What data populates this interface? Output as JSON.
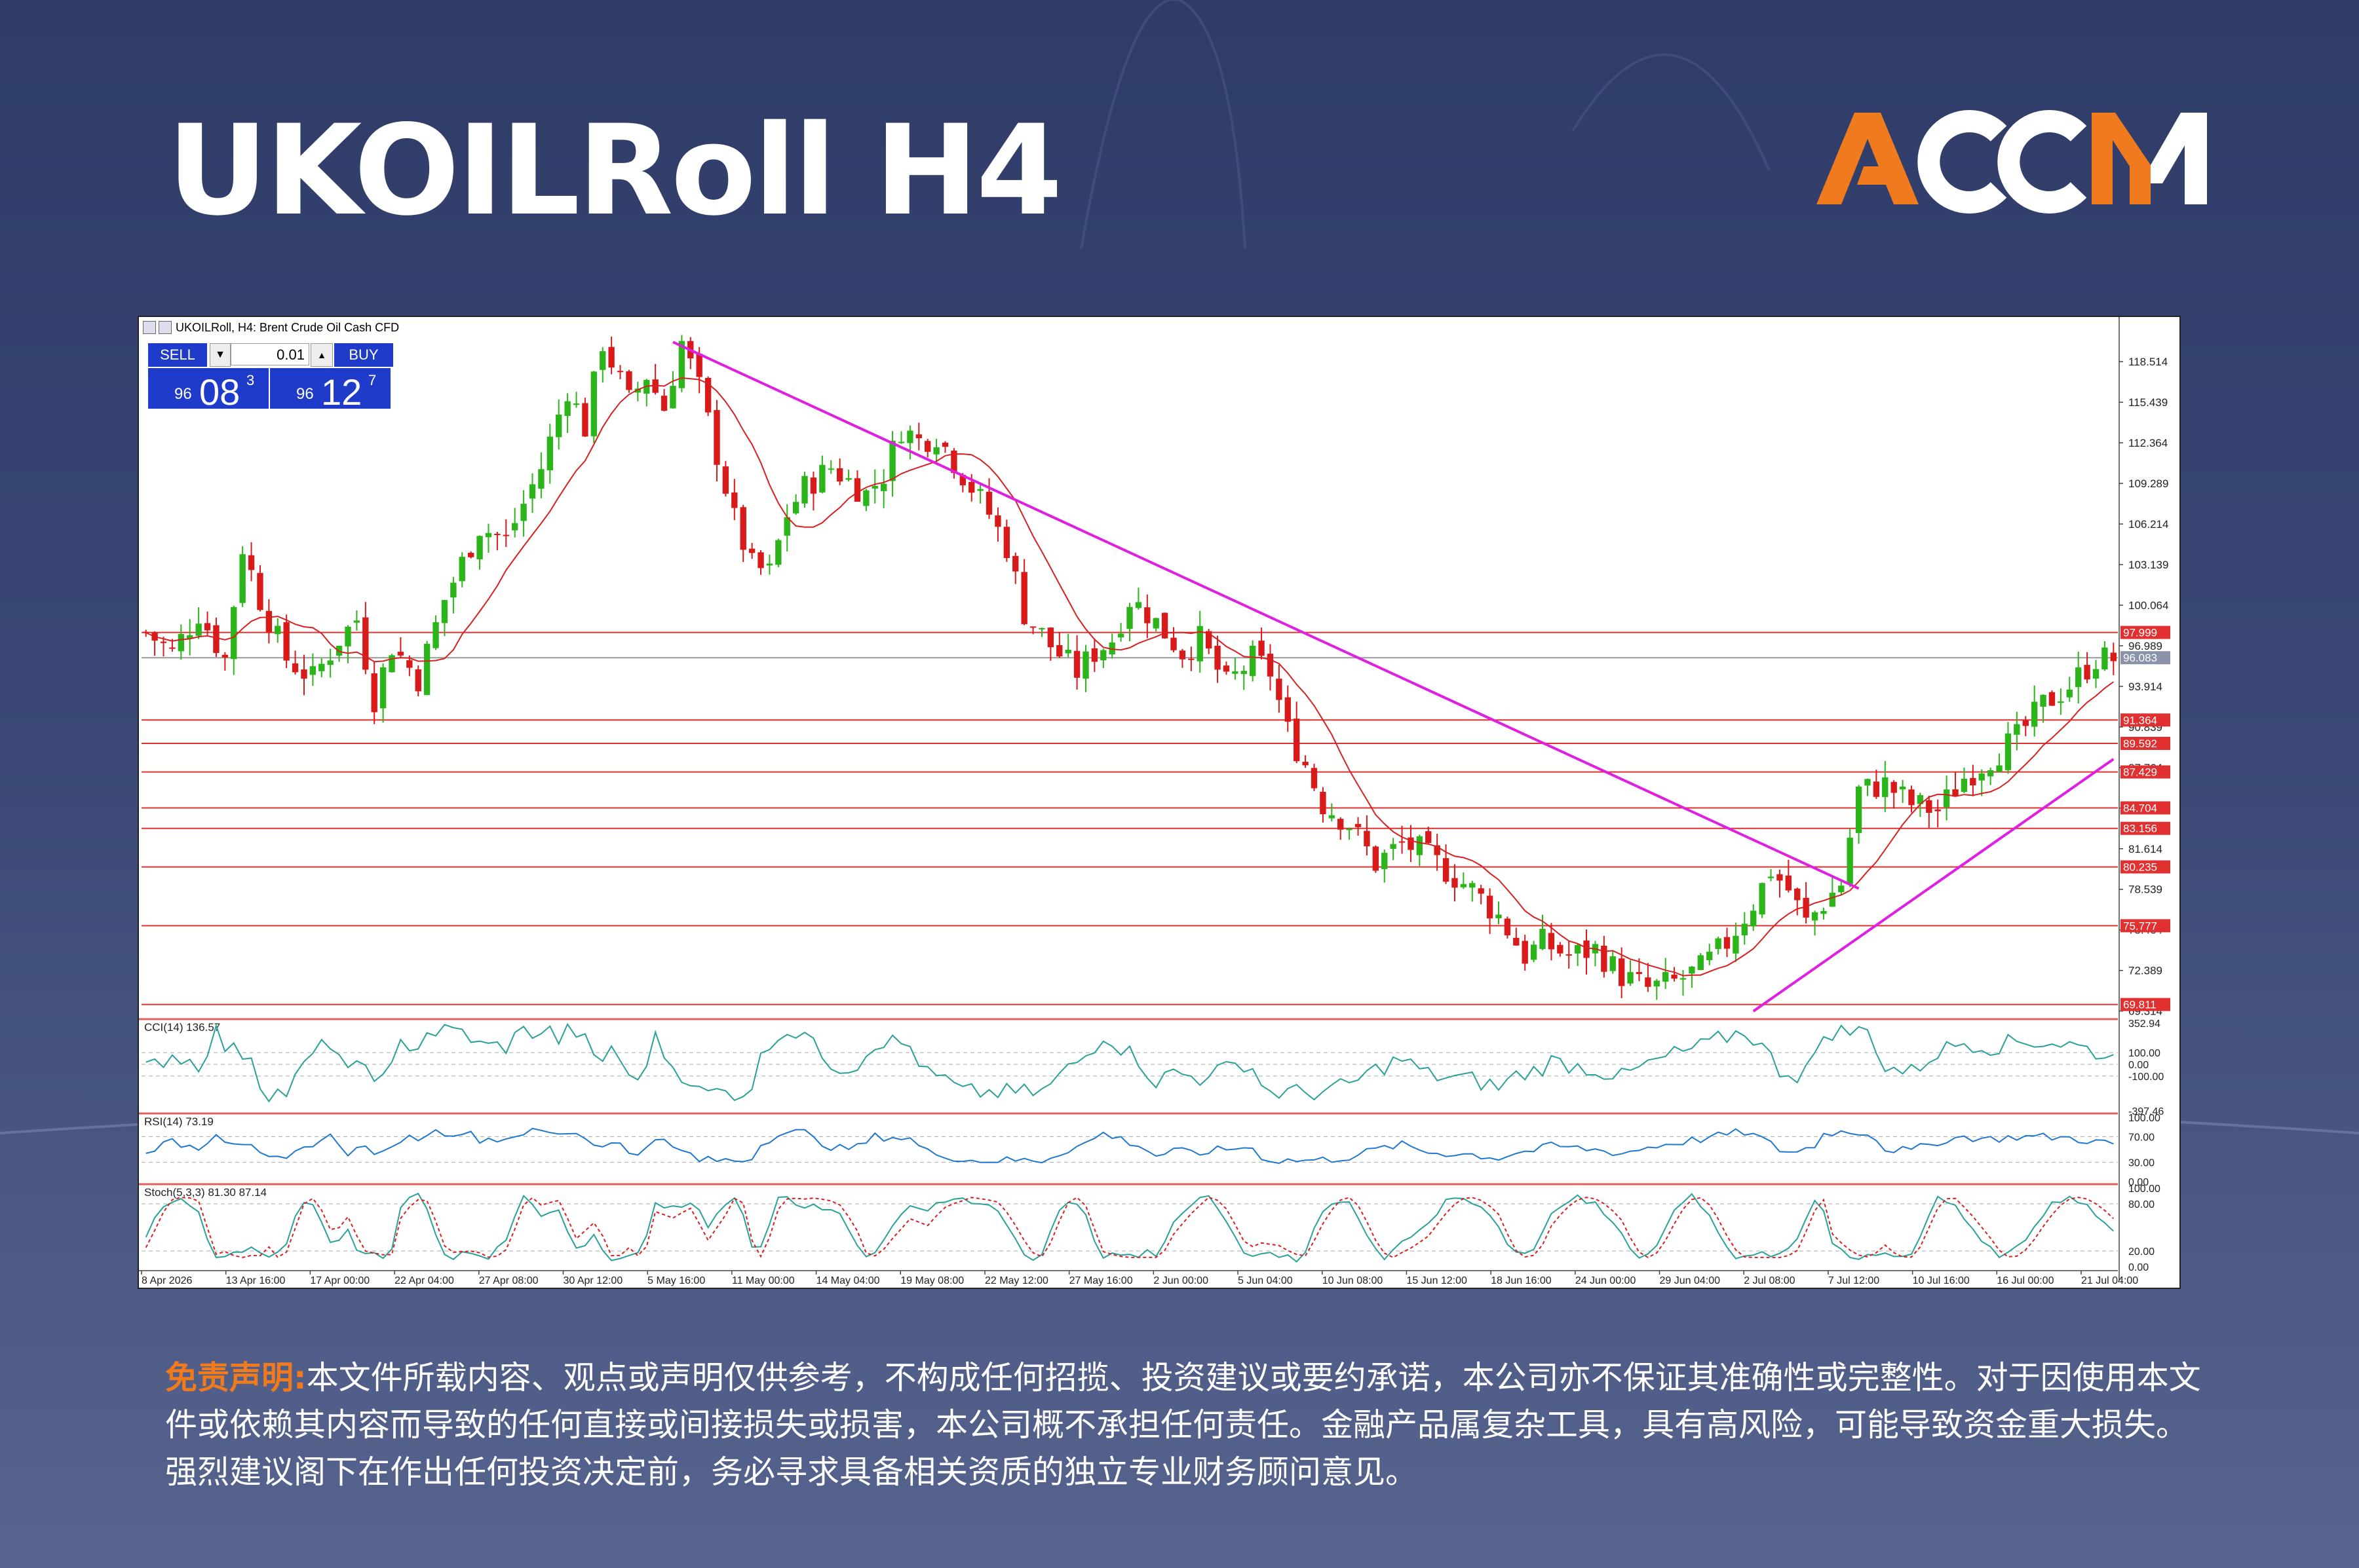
{
  "title": "UKOILRoll H4",
  "logo": {
    "text": "ACCM",
    "colors": {
      "A": "#f07a1e",
      "CC": "#ffffff",
      "M_left": "#f07a1e",
      "M_right": "#ffffff"
    }
  },
  "chart_header": "UKOILRoll, H4:  Brent Crude Oil Cash CFD",
  "trade_panel": {
    "sell_label": "SELL",
    "buy_label": "BUY",
    "lot": "0.01",
    "sell_price_small": "96",
    "sell_price_big": "08",
    "sell_price_sup": "3",
    "buy_price_small": "96",
    "buy_price_big": "12",
    "buy_price_sup": "7"
  },
  "chart_data": {
    "type": "candlestick",
    "symbol": "UKOILRoll",
    "timeframe": "H4",
    "price_axis_ticks": [
      "118.514",
      "115.439",
      "112.364",
      "109.289",
      "106.214",
      "103.139",
      "100.064",
      "96.989",
      "93.914",
      "90.839",
      "87.764",
      "84.689",
      "81.614",
      "78.539",
      "75.464",
      "72.389",
      "69.314"
    ],
    "ylim": [
      68.9,
      121.3
    ],
    "current_price": "96.083",
    "x_tick_labels": [
      "8 Apr 2026",
      "13 Apr 16:00",
      "17 Apr 00:00",
      "22 Apr 04:00",
      "27 Apr 08:00",
      "30 Apr 12:00",
      "5 May 16:00",
      "11 May 00:00",
      "14 May 04:00",
      "19 May 08:00",
      "22 May 12:00",
      "27 May 16:00",
      "2 Jun 00:00",
      "5 Jun 04:00",
      "10 Jun 08:00",
      "15 Jun 12:00",
      "18 Jun 16:00",
      "24 Jun 00:00",
      "29 Jun 04:00",
      "2 Jul 08:00",
      "7 Jul 12:00",
      "10 Jul 16:00",
      "16 Jul 00:00",
      "21 Jul 04:00"
    ],
    "horizontal_levels": [
      "97.999",
      "91.364",
      "89.592",
      "87.429",
      "84.704",
      "83.156",
      "80.235",
      "75.777",
      "69.811"
    ],
    "level_color": "#e03030",
    "price_path": [
      [
        0,
        98.0
      ],
      [
        3,
        96.5
      ],
      [
        6,
        99.5
      ],
      [
        9,
        96.0
      ],
      [
        11,
        104.5
      ],
      [
        13,
        100.5
      ],
      [
        16,
        96.0
      ],
      [
        19,
        94.5
      ],
      [
        22,
        97.5
      ],
      [
        24,
        99.0
      ],
      [
        26,
        93.0
      ],
      [
        28,
        97.0
      ],
      [
        31,
        94.5
      ],
      [
        34,
        100.5
      ],
      [
        38,
        106.0
      ],
      [
        41,
        105.0
      ],
      [
        45,
        110.5
      ],
      [
        48,
        116.5
      ],
      [
        50,
        113.5
      ],
      [
        52,
        120.0
      ],
      [
        55,
        115.5
      ],
      [
        57,
        117.5
      ],
      [
        59,
        115.0
      ],
      [
        61,
        120.0
      ],
      [
        63,
        116.5
      ],
      [
        65,
        111.5
      ],
      [
        67,
        106.5
      ],
      [
        69,
        103.0
      ],
      [
        71,
        102.5
      ],
      [
        73,
        107.0
      ],
      [
        75,
        109.0
      ],
      [
        78,
        110.5
      ],
      [
        80,
        109.5
      ],
      [
        82,
        108.5
      ],
      [
        84,
        110.0
      ],
      [
        86,
        113.5
      ],
      [
        88,
        112.5
      ],
      [
        90,
        113.0
      ],
      [
        92,
        111.0
      ],
      [
        94,
        109.0
      ],
      [
        96,
        107.0
      ],
      [
        98,
        104.5
      ],
      [
        100,
        99.5
      ],
      [
        103,
        97.0
      ],
      [
        106,
        95.0
      ],
      [
        108,
        96.5
      ],
      [
        110,
        97.5
      ],
      [
        112,
        100.5
      ],
      [
        114,
        99.5
      ],
      [
        116,
        98.0
      ],
      [
        118,
        96.5
      ],
      [
        120,
        97.5
      ],
      [
        123,
        94.0
      ],
      [
        126,
        96.0
      ],
      [
        128,
        95.0
      ],
      [
        130,
        90.5
      ],
      [
        132,
        88.0
      ],
      [
        134,
        85.0
      ],
      [
        137,
        83.5
      ],
      [
        140,
        80.5
      ],
      [
        143,
        82.0
      ],
      [
        145,
        81.5
      ],
      [
        148,
        80.0
      ],
      [
        151,
        78.5
      ],
      [
        154,
        76.5
      ],
      [
        157,
        73.5
      ],
      [
        159,
        74.5
      ],
      [
        162,
        73.5
      ],
      [
        165,
        74.0
      ],
      [
        168,
        72.0
      ],
      [
        171,
        71.0
      ],
      [
        174,
        71.5
      ],
      [
        177,
        72.5
      ],
      [
        180,
        74.5
      ],
      [
        183,
        77.5
      ],
      [
        185,
        80.0
      ],
      [
        187,
        78.5
      ],
      [
        189,
        76.0
      ],
      [
        191,
        77.5
      ],
      [
        193,
        79.0
      ],
      [
        195,
        86.0
      ],
      [
        198,
        86.5
      ],
      [
        201,
        85.0
      ],
      [
        204,
        84.5
      ],
      [
        207,
        87.0
      ],
      [
        210,
        88.5
      ],
      [
        213,
        90.0
      ],
      [
        216,
        92.5
      ],
      [
        219,
        94.0
      ],
      [
        222,
        96.0
      ]
    ],
    "moving_average": {
      "color": "#d82020"
    },
    "trendlines": [
      {
        "name": "descending resistance",
        "color": "#e020e0",
        "from": [
          60,
          120.0
        ],
        "to": [
          195,
          78.6
        ]
      },
      {
        "name": "ascending support",
        "color": "#e020e0",
        "from": [
          183,
          69.3
        ],
        "to": [
          224,
          88.4
        ]
      }
    ],
    "indicators": [
      {
        "label": "CCI(14) 136.57",
        "axis_labels": [
          "352.94",
          "100.00",
          "0.00",
          "-100.00",
          "-397.46"
        ],
        "color": "#2aa198"
      },
      {
        "label": "RSI(14) 73.19",
        "axis_labels": [
          "100.00",
          "70.00",
          "30.00",
          "0.00"
        ],
        "color": "#1f77d0"
      },
      {
        "label": "Stoch(5,3,3) 81.30 87.14",
        "axis_labels": [
          "100.00",
          "80.00",
          "20.00",
          "0.00"
        ],
        "color": "#2aa198",
        "signal_color": "#d82020"
      }
    ],
    "colors": {
      "bull": "#2bb51a",
      "bear": "#d81a1a"
    }
  },
  "disclaimer": {
    "label": "免责声明:",
    "text": "本文件所载内容、观点或声明仅供参考，不构成任何招揽、投资建议或要约承诺，本公司亦不保证其准确性或完整性。对于因使用本文件或依赖其内容而导致的任何直接或间接损失或损害，本公司概不承担任何责任。金融产品属复杂工具，具有高风险，可能导致资金重大损失。强烈建议阁下在作出任何投资决定前，务必寻求具备相关资质的独立专业财务顾问意见。"
  }
}
